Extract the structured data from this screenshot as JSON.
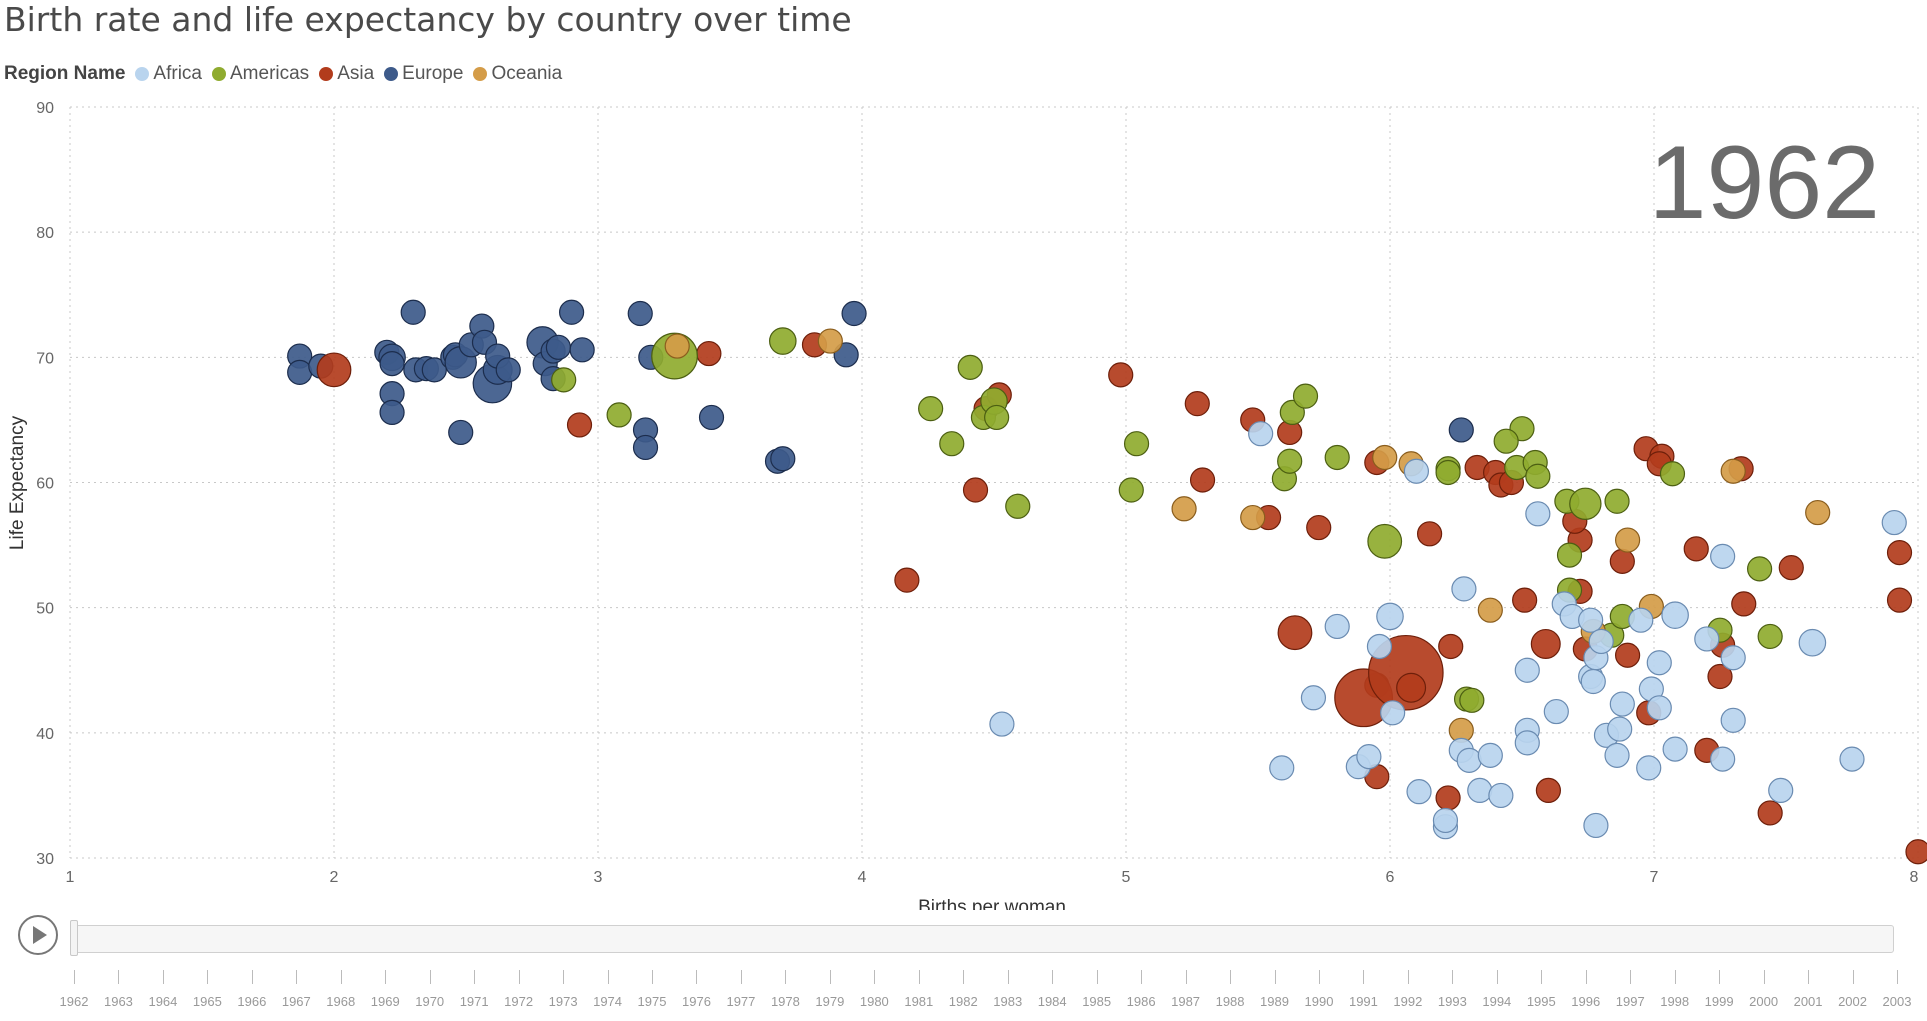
{
  "title": "Birth rate and life expectancy by country over time",
  "legend": {
    "title": "Region Name",
    "items": [
      {
        "label": "Africa",
        "color": "#b9d4ee"
      },
      {
        "label": "Americas",
        "color": "#8fab2f"
      },
      {
        "label": "Asia",
        "color": "#b23c1c"
      },
      {
        "label": "Europe",
        "color": "#3d5a8a"
      },
      {
        "label": "Oceania",
        "color": "#d49c48"
      }
    ]
  },
  "year_label": "1962",
  "play_control": {
    "icon": "play-icon"
  },
  "timeline_years": [
    "1962",
    "1963",
    "1964",
    "1965",
    "1966",
    "1967",
    "1968",
    "1969",
    "1970",
    "1971",
    "1972",
    "1973",
    "1974",
    "1975",
    "1976",
    "1977",
    "1978",
    "1979",
    "1980",
    "1981",
    "1982",
    "1983",
    "1984",
    "1985",
    "1986",
    "1987",
    "1988",
    "1989",
    "1990",
    "1991",
    "1992",
    "1993",
    "1994",
    "1995",
    "1996",
    "1997",
    "1998",
    "1999",
    "2000",
    "2001",
    "2002",
    "2003"
  ],
  "chart_data": {
    "type": "scatter",
    "title": "Birth rate and life expectancy by country over time",
    "xlabel": "Births per woman",
    "ylabel": "Life Expectancy",
    "xlim": [
      1,
      8
    ],
    "ylim": [
      30,
      90
    ],
    "xticks": [
      "1",
      "2",
      "3",
      "4",
      "5",
      "6",
      "7",
      "8"
    ],
    "yticks": [
      "30",
      "40",
      "50",
      "60",
      "70",
      "80",
      "90"
    ],
    "grid": true,
    "legend_position": "top-left",
    "series": [
      {
        "name": "Europe",
        "color": "#3d5a8a",
        "stroke": "#1c2d4d",
        "points": [
          [
            1.87,
            70.1,
            1
          ],
          [
            1.87,
            68.8,
            1
          ],
          [
            1.95,
            69.3,
            1
          ],
          [
            2.2,
            70.4,
            1
          ],
          [
            2.22,
            70.0,
            1.1
          ],
          [
            2.22,
            69.5,
            1
          ],
          [
            2.22,
            67.1,
            1
          ],
          [
            2.22,
            65.6,
            1
          ],
          [
            2.3,
            73.6,
            1
          ],
          [
            2.31,
            69.0,
            1
          ],
          [
            2.35,
            69.1,
            1
          ],
          [
            2.38,
            69.0,
            1
          ],
          [
            2.45,
            70.0,
            1
          ],
          [
            2.46,
            70.2,
            1
          ],
          [
            2.48,
            69.6,
            1.3
          ],
          [
            2.48,
            64.0,
            1
          ],
          [
            2.52,
            71.0,
            1
          ],
          [
            2.56,
            72.5,
            1
          ],
          [
            2.57,
            71.2,
            1
          ],
          [
            2.6,
            67.9,
            1.6
          ],
          [
            2.62,
            69.0,
            1.2
          ],
          [
            2.62,
            70.1,
            1
          ],
          [
            2.66,
            69.0,
            1
          ],
          [
            2.79,
            71.2,
            1.3
          ],
          [
            2.8,
            69.5,
            1
          ],
          [
            2.83,
            70.5,
            1
          ],
          [
            2.83,
            68.3,
            1
          ],
          [
            2.85,
            70.8,
            1
          ],
          [
            2.9,
            73.6,
            1
          ],
          [
            2.94,
            70.6,
            1
          ],
          [
            3.16,
            73.5,
            1
          ],
          [
            3.2,
            70.0,
            1
          ],
          [
            3.18,
            64.2,
            1
          ],
          [
            3.18,
            62.8,
            1
          ],
          [
            3.43,
            65.2,
            1
          ],
          [
            3.68,
            61.7,
            1
          ],
          [
            3.7,
            61.9,
            1
          ],
          [
            3.94,
            70.2,
            1
          ],
          [
            3.97,
            73.5,
            1
          ],
          [
            6.27,
            64.2,
            1
          ]
        ]
      },
      {
        "name": "Asia",
        "color": "#b23c1c",
        "stroke": "#6e1f0a",
        "points": [
          [
            2.0,
            69.0,
            1.4
          ],
          [
            2.93,
            64.6,
            1
          ],
          [
            3.42,
            70.3,
            1
          ],
          [
            3.82,
            71.0,
            1
          ],
          [
            4.17,
            52.2,
            1
          ],
          [
            4.43,
            59.4,
            1
          ],
          [
            4.47,
            65.9,
            1
          ],
          [
            4.52,
            67.0,
            1
          ],
          [
            4.98,
            68.6,
            1
          ],
          [
            5.27,
            66.3,
            1
          ],
          [
            5.29,
            60.2,
            1
          ],
          [
            5.48,
            65.0,
            1
          ],
          [
            5.54,
            57.2,
            1
          ],
          [
            5.62,
            64.0,
            1
          ],
          [
            5.73,
            56.4,
            1
          ],
          [
            5.64,
            48.0,
            1.4
          ],
          [
            5.95,
            61.6,
            1
          ],
          [
            5.95,
            43.8,
            1
          ],
          [
            5.95,
            36.5,
            1
          ],
          [
            5.9,
            42.8,
            2.4
          ],
          [
            6.06,
            44.8,
            3.1
          ],
          [
            6.08,
            43.6,
            1.2
          ],
          [
            6.15,
            55.9,
            1
          ],
          [
            6.23,
            46.9,
            1
          ],
          [
            6.22,
            34.8,
            1
          ],
          [
            6.33,
            61.2,
            1
          ],
          [
            6.4,
            60.8,
            1
          ],
          [
            6.42,
            59.8,
            1
          ],
          [
            6.46,
            60.0,
            1
          ],
          [
            6.51,
            50.6,
            1
          ],
          [
            6.59,
            47.1,
            1.2
          ],
          [
            6.6,
            35.4,
            1
          ],
          [
            6.72,
            55.4,
            1
          ],
          [
            6.72,
            51.3,
            1
          ],
          [
            6.74,
            46.7,
            1
          ],
          [
            6.7,
            56.9,
            1
          ],
          [
            6.88,
            53.7,
            1
          ],
          [
            6.9,
            46.2,
            1
          ],
          [
            6.98,
            41.6,
            1
          ],
          [
            6.97,
            62.7,
            1
          ],
          [
            7.03,
            62.1,
            1
          ],
          [
            7.02,
            61.5,
            1
          ],
          [
            7.16,
            54.7,
            1
          ],
          [
            7.26,
            47.0,
            1
          ],
          [
            7.2,
            38.6,
            1
          ],
          [
            7.25,
            44.5,
            1
          ],
          [
            7.33,
            61.1,
            1
          ],
          [
            7.34,
            50.3,
            1
          ],
          [
            7.44,
            33.6,
            1
          ],
          [
            7.52,
            53.2,
            1
          ],
          [
            7.93,
            54.4,
            1
          ],
          [
            7.93,
            50.6,
            1
          ],
          [
            8.0,
            30.5,
            1
          ]
        ]
      },
      {
        "name": "Americas",
        "color": "#8fab2f",
        "stroke": "#4c5f12",
        "points": [
          [
            2.87,
            68.2,
            1
          ],
          [
            3.08,
            65.4,
            1
          ],
          [
            3.29,
            70.1,
            1.9
          ],
          [
            3.7,
            71.3,
            1.1
          ],
          [
            4.26,
            65.9,
            1
          ],
          [
            4.34,
            63.1,
            1
          ],
          [
            4.41,
            69.2,
            1
          ],
          [
            4.46,
            65.2,
            1
          ],
          [
            4.5,
            66.5,
            1.1
          ],
          [
            4.51,
            65.2,
            1
          ],
          [
            4.59,
            58.1,
            1
          ],
          [
            5.02,
            59.4,
            1
          ],
          [
            5.04,
            63.1,
            1
          ],
          [
            5.6,
            60.3,
            1
          ],
          [
            5.62,
            61.7,
            1
          ],
          [
            5.63,
            65.6,
            1
          ],
          [
            5.68,
            66.9,
            1
          ],
          [
            5.8,
            62.0,
            1
          ],
          [
            5.98,
            55.3,
            1.4
          ],
          [
            6.22,
            61.1,
            1
          ],
          [
            6.22,
            60.8,
            1
          ],
          [
            6.29,
            42.7,
            1
          ],
          [
            6.31,
            42.6,
            1
          ],
          [
            6.48,
            61.2,
            1
          ],
          [
            6.5,
            64.3,
            1
          ],
          [
            6.44,
            63.3,
            1
          ],
          [
            6.55,
            61.6,
            1
          ],
          [
            6.56,
            60.5,
            1
          ],
          [
            6.67,
            58.5,
            1
          ],
          [
            6.68,
            51.4,
            1
          ],
          [
            6.68,
            54.2,
            1
          ],
          [
            6.74,
            58.3,
            1.3
          ],
          [
            6.84,
            47.8,
            1
          ],
          [
            6.86,
            58.5,
            1
          ],
          [
            6.88,
            49.3,
            1
          ],
          [
            7.07,
            60.7,
            1
          ],
          [
            7.25,
            48.2,
            1
          ],
          [
            7.4,
            53.1,
            1
          ],
          [
            7.44,
            47.7,
            1
          ]
        ]
      },
      {
        "name": "Oceania",
        "color": "#d49c48",
        "stroke": "#8a5d1d",
        "points": [
          [
            3.3,
            70.9,
            1
          ],
          [
            3.88,
            71.3,
            1
          ],
          [
            5.22,
            57.9,
            1
          ],
          [
            5.48,
            57.2,
            1
          ],
          [
            5.98,
            62.0,
            1
          ],
          [
            6.08,
            61.5,
            1
          ],
          [
            6.27,
            40.2,
            1
          ],
          [
            6.38,
            49.8,
            1
          ],
          [
            6.77,
            48.1,
            1
          ],
          [
            6.9,
            55.4,
            1
          ],
          [
            6.99,
            50.1,
            1
          ],
          [
            7.3,
            60.9,
            1
          ],
          [
            7.62,
            57.6,
            1
          ]
        ]
      },
      {
        "name": "Africa",
        "color": "#b9d4ee",
        "stroke": "#6a8bb1",
        "points": [
          [
            4.53,
            40.7,
            1
          ],
          [
            5.51,
            63.9,
            1
          ],
          [
            5.59,
            37.2,
            1
          ],
          [
            5.71,
            42.8,
            1
          ],
          [
            5.8,
            48.5,
            1
          ],
          [
            5.88,
            37.3,
            1
          ],
          [
            5.92,
            38.1,
            1
          ],
          [
            5.96,
            46.9,
            1
          ],
          [
            6.0,
            49.3,
            1.1
          ],
          [
            6.01,
            41.6,
            1
          ],
          [
            6.1,
            60.9,
            1
          ],
          [
            6.11,
            35.3,
            1
          ],
          [
            6.21,
            32.5,
            1
          ],
          [
            6.21,
            33.0,
            1
          ],
          [
            6.28,
            51.5,
            1
          ],
          [
            6.27,
            38.6,
            1
          ],
          [
            6.3,
            37.8,
            1
          ],
          [
            6.34,
            35.4,
            1
          ],
          [
            6.38,
            38.2,
            1
          ],
          [
            6.42,
            35.0,
            1
          ],
          [
            6.52,
            45.0,
            1
          ],
          [
            6.52,
            40.2,
            1
          ],
          [
            6.52,
            39.2,
            1
          ],
          [
            6.56,
            57.5,
            1
          ],
          [
            6.63,
            41.7,
            1
          ],
          [
            6.66,
            50.3,
            1
          ],
          [
            6.69,
            49.3,
            1
          ],
          [
            6.76,
            49.0,
            1
          ],
          [
            6.76,
            44.5,
            1
          ],
          [
            6.78,
            46.0,
            1
          ],
          [
            6.77,
            44.1,
            1
          ],
          [
            6.8,
            47.3,
            1
          ],
          [
            6.82,
            39.8,
            1
          ],
          [
            6.86,
            38.2,
            1
          ],
          [
            6.87,
            40.3,
            1
          ],
          [
            6.88,
            42.3,
            1
          ],
          [
            6.95,
            49.0,
            1
          ],
          [
            6.98,
            37.2,
            1
          ],
          [
            6.99,
            43.5,
            1
          ],
          [
            7.02,
            42.0,
            1
          ],
          [
            7.02,
            45.6,
            1
          ],
          [
            7.08,
            49.4,
            1.1
          ],
          [
            7.08,
            38.7,
            1
          ],
          [
            7.2,
            47.5,
            1
          ],
          [
            7.26,
            37.9,
            1
          ],
          [
            7.26,
            54.1,
            1
          ],
          [
            7.3,
            41.0,
            1
          ],
          [
            7.3,
            46.0,
            1
          ],
          [
            7.48,
            35.4,
            1
          ],
          [
            7.6,
            47.2,
            1.1
          ],
          [
            7.75,
            37.9,
            1
          ],
          [
            7.91,
            56.8,
            1
          ],
          [
            6.78,
            32.6,
            1
          ]
        ]
      }
    ]
  }
}
